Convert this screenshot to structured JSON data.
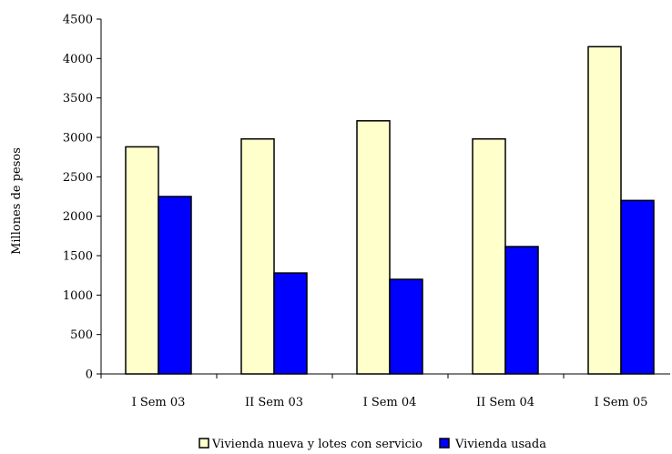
{
  "chart_data": {
    "type": "bar",
    "title": "",
    "xlabel": "",
    "ylabel": "Millones de pesos",
    "ylim": [
      0,
      4500
    ],
    "yticks": [
      0,
      500,
      1000,
      1500,
      2000,
      2500,
      3000,
      3500,
      4000,
      4500
    ],
    "grid": false,
    "legend_position": "bottom",
    "categories": [
      "I Sem 03",
      "II Sem 03",
      "I Sem 04",
      "II Sem 04",
      "I Sem 05"
    ],
    "series": [
      {
        "name": "Vivienda nueva y lotes con servicio",
        "color": "#FFFFCC",
        "values": [
          2880,
          2980,
          3210,
          2980,
          4150
        ]
      },
      {
        "name": "Vivienda usada",
        "color": "#0000FF",
        "values": [
          2250,
          1280,
          1200,
          1615,
          2200
        ]
      }
    ]
  }
}
